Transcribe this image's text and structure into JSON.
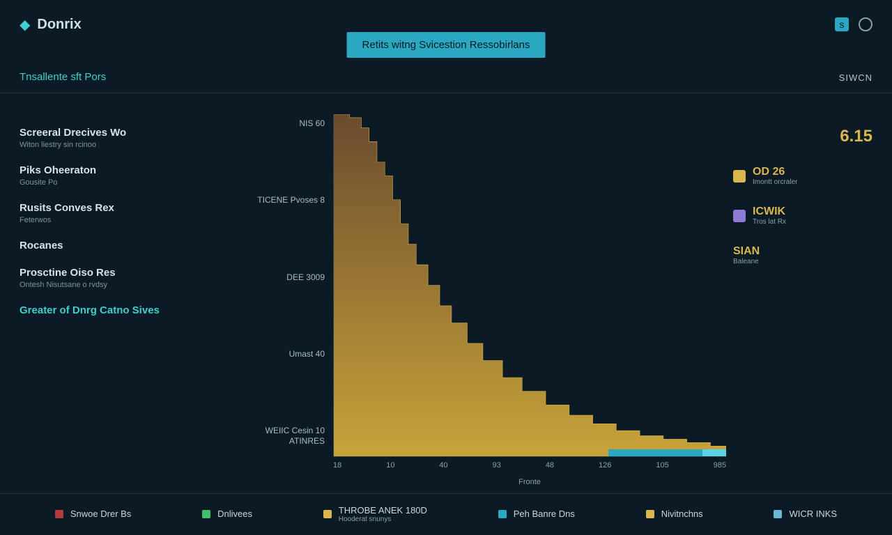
{
  "header": {
    "brand": "Donrix",
    "pill": "Retits witng Svicestion Ressobirlans",
    "subtitle_left": "Tnsallente sft Pors",
    "subtitle_right": "SIWCN"
  },
  "nav": {
    "items": [
      {
        "title": "Screeral Drecives Wo",
        "sub": "Witon liestry sin rcinoo",
        "active": false
      },
      {
        "title": "Piks Oheeraton",
        "sub": "Gousite Po",
        "active": false
      },
      {
        "title": "Rusits Conves Rex",
        "sub": "Feterwos",
        "active": false
      },
      {
        "title": "Rocanes",
        "sub": "",
        "active": false
      },
      {
        "title": "Prosctine Oiso Res",
        "sub": "Ontesh Nisutsane o rvdsy",
        "active": false
      },
      {
        "title": "Greater of Dnrg Catno Sives",
        "sub": "",
        "active": true
      }
    ]
  },
  "chart": {
    "type": "area-step",
    "background_color": "#0b1a24",
    "axis_color": "#2d3f4a",
    "fill_top_color": "#6a4b2e",
    "fill_bottom_color": "#c8a33a",
    "edge_color": "#d7b24a",
    "baseline_segments": [
      {
        "width_pct": 70,
        "color": "#c8a33a"
      },
      {
        "width_pct": 24,
        "color": "#2aa8c2"
      },
      {
        "width_pct": 6,
        "color": "#5bd3e5"
      }
    ],
    "y_labels": [
      "NIS 60",
      "TICENE Pvoses 8",
      "DEE 3009",
      "Umast 40",
      "WEIIC Cesin 10\nATINRES"
    ],
    "x_ticks": [
      "18",
      "10",
      "40",
      "93",
      "48",
      "126",
      "105",
      "985"
    ],
    "x_axis_label": "Fronte",
    "series": [
      {
        "x": 0.0,
        "y": 1.0
      },
      {
        "x": 0.04,
        "y": 0.99
      },
      {
        "x": 0.07,
        "y": 0.96
      },
      {
        "x": 0.09,
        "y": 0.92
      },
      {
        "x": 0.11,
        "y": 0.86
      },
      {
        "x": 0.13,
        "y": 0.82
      },
      {
        "x": 0.15,
        "y": 0.75
      },
      {
        "x": 0.17,
        "y": 0.68
      },
      {
        "x": 0.19,
        "y": 0.62
      },
      {
        "x": 0.21,
        "y": 0.56
      },
      {
        "x": 0.24,
        "y": 0.5
      },
      {
        "x": 0.27,
        "y": 0.44
      },
      {
        "x": 0.3,
        "y": 0.39
      },
      {
        "x": 0.34,
        "y": 0.33
      },
      {
        "x": 0.38,
        "y": 0.28
      },
      {
        "x": 0.43,
        "y": 0.23
      },
      {
        "x": 0.48,
        "y": 0.19
      },
      {
        "x": 0.54,
        "y": 0.15
      },
      {
        "x": 0.6,
        "y": 0.12
      },
      {
        "x": 0.66,
        "y": 0.095
      },
      {
        "x": 0.72,
        "y": 0.075
      },
      {
        "x": 0.78,
        "y": 0.06
      },
      {
        "x": 0.84,
        "y": 0.05
      },
      {
        "x": 0.9,
        "y": 0.04
      },
      {
        "x": 0.96,
        "y": 0.03
      },
      {
        "x": 1.0,
        "y": 0.03
      }
    ]
  },
  "stats": {
    "big": {
      "value": "6.15",
      "color": "#d9b74e"
    },
    "rows": [
      {
        "icon_color": "#d9b74e",
        "value": "OD 26",
        "value_color": "#d9b74e",
        "sub": "Imontt orcraler"
      },
      {
        "icon_color": "#8f7bd6",
        "value": "ICWIK",
        "value_color": "#d9b74e",
        "sub": "Tros lat Rx"
      },
      {
        "icon_color": "",
        "value": "SIAN",
        "value_color": "#d9b74e",
        "sub": "Baleane"
      }
    ]
  },
  "footer": {
    "items": [
      {
        "color": "#b23a3a",
        "label": "Snwoe Drer Bs",
        "sub": ""
      },
      {
        "color": "#3ec06a",
        "label": "Dnlivees",
        "sub": ""
      },
      {
        "color": "#d9b74e",
        "label": "THROBE ANEK 180D",
        "sub": "Hooderat snunys"
      },
      {
        "color": "#2aa8c2",
        "label": "Peh Banre Dns",
        "sub": ""
      },
      {
        "color": "#d9b74e",
        "label": "Nivitnchns",
        "sub": ""
      },
      {
        "color": "#6bb7d6",
        "label": "WICR INKS",
        "sub": ""
      }
    ]
  }
}
